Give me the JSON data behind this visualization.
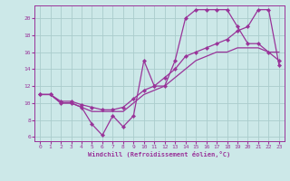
{
  "xlabel": "Windchill (Refroidissement éolien,°C)",
  "bg_color": "#cce8e8",
  "line_color": "#993399",
  "grid_color": "#aacccc",
  "xlim": [
    -0.5,
    23.5
  ],
  "ylim": [
    5.5,
    21.5
  ],
  "xticks": [
    0,
    1,
    2,
    3,
    4,
    5,
    6,
    7,
    8,
    9,
    10,
    11,
    12,
    13,
    14,
    15,
    16,
    17,
    18,
    19,
    20,
    21,
    22,
    23
  ],
  "yticks": [
    6,
    8,
    10,
    12,
    14,
    16,
    18,
    20
  ],
  "series1_x": [
    0,
    1,
    2,
    3,
    4,
    5,
    6,
    7,
    8,
    9,
    10,
    11,
    12,
    13,
    14,
    15,
    16,
    17,
    18,
    19,
    20,
    21,
    22,
    23
  ],
  "series1_y": [
    11,
    11,
    10,
    10,
    9.5,
    7.5,
    6.2,
    8.5,
    7.2,
    8.5,
    15,
    12,
    12,
    15,
    20,
    21,
    21,
    21,
    21,
    19,
    17,
    17,
    16,
    15
  ],
  "series2_x": [
    0,
    1,
    2,
    3,
    4,
    5,
    6,
    7,
    8,
    9,
    10,
    11,
    12,
    13,
    14,
    15,
    16,
    17,
    18,
    19,
    20,
    21,
    22,
    23
  ],
  "series2_y": [
    11,
    11,
    10.2,
    10.2,
    9.8,
    9.5,
    9.2,
    9.2,
    9.5,
    10.5,
    11.5,
    12,
    13,
    14,
    15.5,
    16,
    16.5,
    17,
    17.5,
    18.5,
    19,
    21,
    21,
    14.5
  ],
  "series3_x": [
    0,
    1,
    2,
    3,
    4,
    5,
    6,
    7,
    8,
    9,
    10,
    11,
    12,
    13,
    14,
    15,
    16,
    17,
    18,
    19,
    20,
    21,
    22,
    23
  ],
  "series3_y": [
    11,
    11,
    10,
    10,
    9.5,
    9,
    9,
    9,
    9,
    10,
    11,
    11.5,
    12,
    13,
    14,
    15,
    15.5,
    16,
    16,
    16.5,
    16.5,
    16.5,
    16,
    16
  ]
}
